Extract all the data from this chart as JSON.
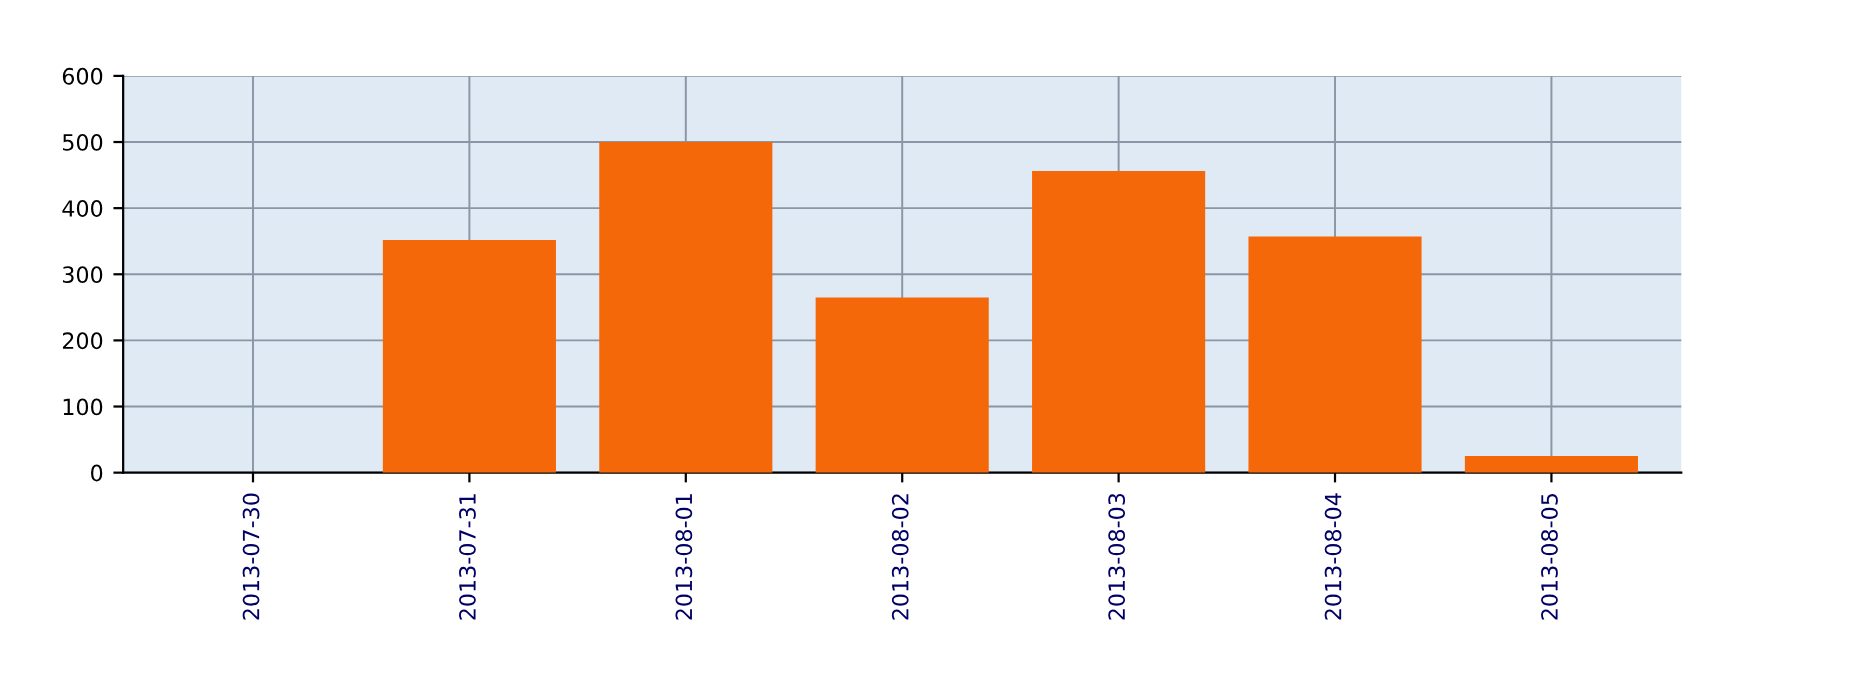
{
  "chart_data": {
    "type": "bar",
    "categories": [
      "2013-07-30",
      "2013-07-31",
      "2013-08-01",
      "2013-08-02",
      "2013-08-03",
      "2013-08-04",
      "2013-08-05"
    ],
    "values": [
      0,
      352,
      500,
      265,
      456,
      357,
      25
    ],
    "color": "#f5680a",
    "ylim": [
      0,
      600
    ],
    "yticks": [
      0,
      100,
      200,
      300,
      400,
      500,
      600
    ],
    "grid": true
  }
}
